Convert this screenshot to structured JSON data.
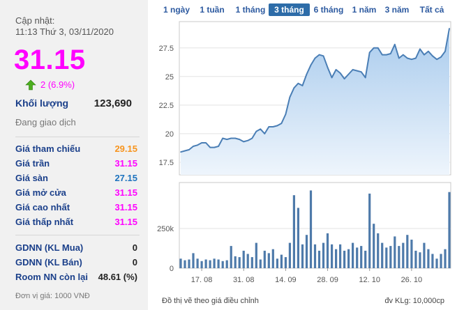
{
  "panel": {
    "updated_label": "Cập nhật:",
    "updated_time": "11:13 Thứ 3, 03/11/2020",
    "price": "31.15",
    "change": "2 (6.9%)",
    "volume_label": "Khối lượng",
    "volume_value": "123,690",
    "status": "Đang giao dịch",
    "stats": [
      {
        "label": "Giá tham chiếu",
        "value": "29.15",
        "color": "#f7941d"
      },
      {
        "label": "Giá trần",
        "value": "31.15",
        "color": "#ff00ff"
      },
      {
        "label": "Giá sàn",
        "value": "27.15",
        "color": "#1e73be"
      },
      {
        "label": "Giá mở cửa",
        "value": "31.15",
        "color": "#ff00ff"
      },
      {
        "label": "Giá cao nhất",
        "value": "31.15",
        "color": "#ff00ff"
      },
      {
        "label": "Giá thấp nhất",
        "value": "31.15",
        "color": "#ff00ff"
      }
    ],
    "foreign": [
      {
        "label": "GDNN (KL Mua)",
        "value": "0"
      },
      {
        "label": "GDNN (KL Bán)",
        "value": "0"
      },
      {
        "label": "Room NN còn lại",
        "value": "48.61 (%)"
      }
    ],
    "unit_note": "Đơn vị giá: 1000 VNĐ"
  },
  "tabs": [
    {
      "label": "1 ngày",
      "active": false
    },
    {
      "label": "1 tuần",
      "active": false
    },
    {
      "label": "1 tháng",
      "active": false
    },
    {
      "label": "3 tháng",
      "active": true
    },
    {
      "label": "6 tháng",
      "active": false
    },
    {
      "label": "1 năm",
      "active": false
    },
    {
      "label": "3 năm",
      "active": false
    },
    {
      "label": "Tất cả",
      "active": false
    }
  ],
  "footer": {
    "left": "Đồ thị vẽ theo giá điều chỉnh",
    "right": "đv KLg: 10,000cp"
  },
  "colors": {
    "line": "#4a7eb5",
    "fill_top": "#a9cbed",
    "fill_bottom": "#eef5fc",
    "bar": "#4e7aaa"
  },
  "chart_data": [
    {
      "type": "area",
      "x_ticks": [
        "17. 08",
        "31. 08",
        "14. 09",
        "28. 09",
        "12. 10",
        "26. 10"
      ],
      "y_ticks": [
        "17.5",
        "20",
        "22.5",
        "25",
        "27.5"
      ],
      "y_tick_values": [
        17.5,
        20,
        22.5,
        25,
        27.5
      ],
      "ylim": [
        16.4,
        29.8
      ],
      "values": [
        18.4,
        18.5,
        18.6,
        18.9,
        19.0,
        19.2,
        19.2,
        18.8,
        18.8,
        18.9,
        19.6,
        19.5,
        19.6,
        19.6,
        19.5,
        19.3,
        19.4,
        19.6,
        20.2,
        20.4,
        20.0,
        20.6,
        20.6,
        20.7,
        20.9,
        21.7,
        23.2,
        24.0,
        24.4,
        24.2,
        25.2,
        26.0,
        26.6,
        26.9,
        26.8,
        25.8,
        24.9,
        25.6,
        25.3,
        24.8,
        25.2,
        25.6,
        25.5,
        25.4,
        24.9,
        27.1,
        27.5,
        27.5,
        26.9,
        26.9,
        27.0,
        27.8,
        26.6,
        26.9,
        26.6,
        26.5,
        26.6,
        27.4,
        26.9,
        27.2,
        26.8,
        26.5,
        26.7,
        27.2,
        29.2
      ]
    },
    {
      "type": "bar",
      "y_ticks": [
        "0",
        "250k"
      ],
      "y_tick_values": [
        0,
        250000
      ],
      "ylim": [
        0,
        540000
      ],
      "values": [
        60000,
        50000,
        55000,
        95000,
        60000,
        45000,
        55000,
        50000,
        60000,
        55000,
        45000,
        50000,
        140000,
        75000,
        70000,
        110000,
        90000,
        70000,
        160000,
        55000,
        110000,
        95000,
        120000,
        60000,
        85000,
        70000,
        160000,
        460000,
        380000,
        150000,
        210000,
        490000,
        150000,
        110000,
        160000,
        220000,
        150000,
        120000,
        150000,
        110000,
        120000,
        160000,
        130000,
        140000,
        110000,
        470000,
        280000,
        220000,
        160000,
        130000,
        140000,
        200000,
        140000,
        160000,
        210000,
        180000,
        110000,
        100000,
        160000,
        120000,
        90000,
        60000,
        90000,
        120000,
        480000
      ]
    }
  ]
}
